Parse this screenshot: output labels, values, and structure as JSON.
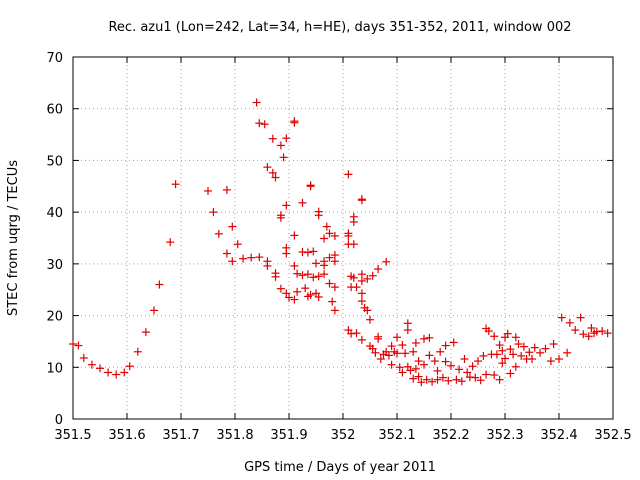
{
  "chart_data": {
    "type": "scatter",
    "title": "Rec. azu1 (Lon=242, Lat=34, h=HE), days 351-352, 2011, window 002",
    "xlabel": "GPS time / Days of year 2011",
    "ylabel": "STEC from uqrg / TECUs",
    "xlim": [
      351.5,
      352.5
    ],
    "ylim": [
      0,
      70
    ],
    "grid": true,
    "marker": "plus",
    "color": "#e00000",
    "x_ticks": [
      {
        "value": 351.5,
        "label": "351.5"
      },
      {
        "value": 351.6,
        "label": "351.6"
      },
      {
        "value": 351.7,
        "label": "351.7"
      },
      {
        "value": 351.8,
        "label": "351.8"
      },
      {
        "value": 351.9,
        "label": "351.9"
      },
      {
        "value": 352.0,
        "label": "352"
      },
      {
        "value": 352.1,
        "label": "352.1"
      },
      {
        "value": 352.2,
        "label": "352.2"
      },
      {
        "value": 352.3,
        "label": "352.3"
      },
      {
        "value": 352.4,
        "label": "352.4"
      },
      {
        "value": 352.5,
        "label": "352.5"
      }
    ],
    "y_ticks": [
      {
        "value": 0,
        "label": "0"
      },
      {
        "value": 10,
        "label": "10"
      },
      {
        "value": 20,
        "label": "20"
      },
      {
        "value": 30,
        "label": "30"
      },
      {
        "value": 40,
        "label": "40"
      },
      {
        "value": 50,
        "label": "50"
      },
      {
        "value": 60,
        "label": "60"
      },
      {
        "value": 70,
        "label": "70"
      }
    ],
    "points": [
      [
        351.5,
        14.5
      ],
      [
        351.51,
        14.2
      ],
      [
        351.52,
        11.8
      ],
      [
        351.535,
        10.5
      ],
      [
        351.55,
        9.8
      ],
      [
        351.565,
        9.0
      ],
      [
        351.58,
        8.6
      ],
      [
        351.595,
        9.0
      ],
      [
        351.605,
        10.2
      ],
      [
        351.62,
        13.0
      ],
      [
        351.635,
        16.8
      ],
      [
        351.65,
        21.0
      ],
      [
        351.66,
        26.0
      ],
      [
        351.68,
        34.2
      ],
      [
        351.69,
        45.4
      ],
      [
        351.75,
        44.1
      ],
      [
        351.76,
        40.0
      ],
      [
        351.77,
        35.8
      ],
      [
        351.785,
        44.3
      ],
      [
        351.785,
        32.0
      ],
      [
        351.795,
        37.2
      ],
      [
        351.795,
        30.5
      ],
      [
        351.805,
        33.8
      ],
      [
        351.815,
        31.0
      ],
      [
        351.83,
        31.2
      ],
      [
        351.845,
        31.3
      ],
      [
        351.86,
        30.5
      ],
      [
        351.86,
        29.6
      ],
      [
        351.875,
        28.2
      ],
      [
        351.875,
        27.5
      ],
      [
        351.885,
        25.2
      ],
      [
        351.84,
        61.2
      ],
      [
        351.845,
        57.2
      ],
      [
        351.855,
        57.0
      ],
      [
        351.86,
        48.7
      ],
      [
        351.87,
        47.6
      ],
      [
        351.875,
        46.7
      ],
      [
        351.87,
        54.2
      ],
      [
        351.885,
        52.9
      ],
      [
        351.89,
        50.6
      ],
      [
        351.895,
        54.3
      ],
      [
        351.885,
        39.4
      ],
      [
        351.885,
        38.9
      ],
      [
        351.895,
        41.3
      ],
      [
        351.895,
        33.1
      ],
      [
        351.895,
        32.0
      ],
      [
        351.895,
        24.3
      ],
      [
        351.9,
        23.5
      ],
      [
        351.91,
        57.6
      ],
      [
        351.91,
        57.3
      ],
      [
        351.91,
        35.5
      ],
      [
        351.91,
        29.6
      ],
      [
        351.91,
        23.1
      ],
      [
        351.915,
        28.1
      ],
      [
        351.915,
        24.6
      ],
      [
        351.925,
        41.8
      ],
      [
        351.925,
        32.3
      ],
      [
        351.925,
        27.8
      ],
      [
        351.93,
        25.3
      ],
      [
        351.935,
        23.7
      ],
      [
        351.935,
        32.2
      ],
      [
        351.935,
        28.0
      ],
      [
        351.94,
        45.2
      ],
      [
        351.94,
        45.0
      ],
      [
        351.94,
        24.0
      ],
      [
        351.945,
        32.4
      ],
      [
        351.945,
        27.4
      ],
      [
        351.95,
        30.1
      ],
      [
        351.95,
        24.3
      ],
      [
        351.955,
        40.1
      ],
      [
        351.955,
        39.4
      ],
      [
        351.955,
        27.6
      ],
      [
        351.955,
        23.6
      ],
      [
        351.965,
        34.9
      ],
      [
        351.965,
        30.5
      ],
      [
        351.965,
        29.7
      ],
      [
        351.965,
        28.0
      ],
      [
        351.97,
        37.2
      ],
      [
        351.975,
        35.9
      ],
      [
        351.975,
        31.2
      ],
      [
        351.975,
        26.2
      ],
      [
        351.98,
        22.7
      ],
      [
        351.985,
        35.4
      ],
      [
        351.985,
        31.7
      ],
      [
        351.985,
        30.5
      ],
      [
        351.985,
        25.5
      ],
      [
        351.985,
        21.0
      ],
      [
        352.01,
        47.3
      ],
      [
        352.01,
        35.9
      ],
      [
        352.01,
        35.4
      ],
      [
        352.01,
        33.8
      ],
      [
        352.015,
        27.6
      ],
      [
        352.015,
        25.5
      ],
      [
        352.02,
        39.1
      ],
      [
        352.02,
        38.1
      ],
      [
        352.02,
        33.8
      ],
      [
        352.02,
        27.3
      ],
      [
        352.025,
        25.5
      ],
      [
        352.035,
        42.5
      ],
      [
        352.035,
        42.3
      ],
      [
        352.035,
        28.0
      ],
      [
        352.035,
        26.7
      ],
      [
        352.035,
        24.3
      ],
      [
        352.035,
        22.8
      ],
      [
        352.04,
        21.5
      ],
      [
        352.045,
        27.1
      ],
      [
        352.045,
        21.0
      ],
      [
        352.05,
        19.2
      ],
      [
        352.055,
        27.7
      ],
      [
        352.065,
        29.0
      ],
      [
        352.08,
        30.4
      ],
      [
        352.01,
        17.2
      ],
      [
        352.015,
        16.5
      ],
      [
        352.025,
        16.6
      ],
      [
        352.035,
        15.3
      ],
      [
        352.05,
        14.1
      ],
      [
        352.055,
        13.6
      ],
      [
        352.06,
        12.8
      ],
      [
        352.065,
        15.9
      ],
      [
        352.065,
        15.5
      ],
      [
        352.07,
        11.6
      ],
      [
        352.075,
        12.5
      ],
      [
        352.08,
        13.0
      ],
      [
        352.085,
        12.3
      ],
      [
        352.09,
        14.1
      ],
      [
        352.09,
        10.5
      ],
      [
        352.095,
        13.0
      ],
      [
        352.1,
        15.8
      ],
      [
        352.1,
        12.7
      ],
      [
        352.105,
        10.0
      ],
      [
        352.11,
        14.3
      ],
      [
        352.11,
        9.0
      ],
      [
        352.115,
        12.7
      ],
      [
        352.12,
        18.5
      ],
      [
        352.12,
        17.2
      ],
      [
        352.12,
        10.1
      ],
      [
        352.125,
        9.4
      ],
      [
        352.13,
        13.0
      ],
      [
        352.13,
        7.8
      ],
      [
        352.135,
        14.7
      ],
      [
        352.135,
        9.7
      ],
      [
        352.14,
        11.2
      ],
      [
        352.14,
        8.2
      ],
      [
        352.145,
        7.1
      ],
      [
        352.15,
        15.5
      ],
      [
        352.15,
        10.5
      ],
      [
        352.155,
        7.6
      ],
      [
        352.16,
        15.7
      ],
      [
        352.16,
        12.3
      ],
      [
        352.165,
        7.2
      ],
      [
        352.17,
        11.2
      ],
      [
        352.175,
        9.3
      ],
      [
        352.175,
        7.6
      ],
      [
        352.18,
        13.0
      ],
      [
        352.185,
        8.0
      ],
      [
        352.19,
        14.2
      ],
      [
        352.19,
        11.1
      ],
      [
        352.195,
        7.4
      ],
      [
        352.2,
        10.3
      ],
      [
        352.205,
        14.8
      ],
      [
        352.21,
        7.6
      ],
      [
        352.215,
        9.6
      ],
      [
        352.22,
        7.3
      ],
      [
        352.225,
        11.6
      ],
      [
        352.23,
        9.0
      ],
      [
        352.235,
        8.1
      ],
      [
        352.24,
        10.2
      ],
      [
        352.245,
        8.0
      ],
      [
        352.25,
        11.2
      ],
      [
        352.255,
        7.5
      ],
      [
        352.26,
        12.2
      ],
      [
        352.265,
        8.6
      ],
      [
        352.265,
        17.5
      ],
      [
        352.27,
        17.0
      ],
      [
        352.275,
        12.5
      ],
      [
        352.28,
        16.0
      ],
      [
        352.28,
        8.5
      ],
      [
        352.285,
        12.5
      ],
      [
        352.29,
        14.3
      ],
      [
        352.29,
        7.6
      ],
      [
        352.295,
        13.2
      ],
      [
        352.295,
        10.8
      ],
      [
        352.3,
        15.8
      ],
      [
        352.3,
        11.7
      ],
      [
        352.305,
        16.5
      ],
      [
        352.31,
        13.5
      ],
      [
        352.31,
        8.8
      ],
      [
        352.315,
        12.5
      ],
      [
        352.32,
        15.8
      ],
      [
        352.32,
        10.1
      ],
      [
        352.325,
        14.5
      ],
      [
        352.33,
        12.2
      ],
      [
        352.335,
        14.0
      ],
      [
        352.34,
        11.6
      ],
      [
        352.345,
        12.9
      ],
      [
        352.35,
        11.6
      ],
      [
        352.355,
        13.8
      ],
      [
        352.365,
        12.8
      ],
      [
        352.375,
        13.6
      ],
      [
        352.385,
        11.2
      ],
      [
        352.39,
        14.5
      ],
      [
        352.4,
        11.6
      ],
      [
        352.405,
        19.6
      ],
      [
        352.415,
        12.8
      ],
      [
        352.42,
        18.6
      ],
      [
        352.43,
        17.2
      ],
      [
        352.44,
        19.6
      ],
      [
        352.445,
        16.4
      ],
      [
        352.455,
        16.0
      ],
      [
        352.46,
        17.6
      ],
      [
        352.465,
        16.6
      ],
      [
        352.47,
        16.9
      ],
      [
        352.48,
        17.0
      ],
      [
        352.49,
        16.6
      ]
    ]
  }
}
